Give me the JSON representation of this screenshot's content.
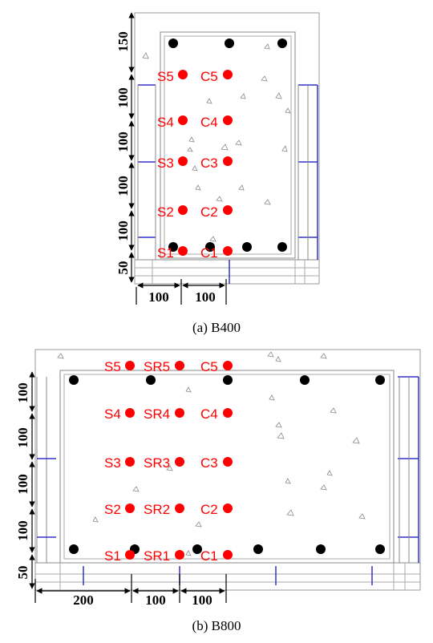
{
  "colors": {
    "sensor": "#ff0000",
    "rebar": "#000000",
    "frame": "#3333cc",
    "concrete_outline": "#808080"
  },
  "panels": [
    {
      "id": "B400",
      "caption": "(a) B400",
      "sensor_rows": [
        [
          "S5",
          "C5"
        ],
        [
          "S4",
          "C4"
        ],
        [
          "S3",
          "C3"
        ],
        [
          "S2",
          "C2"
        ],
        [
          "S1",
          "C1"
        ]
      ],
      "vertical_dims": [
        "150",
        "100",
        "100",
        "100",
        "100",
        "50"
      ],
      "horizontal_dims": [
        "100",
        "100"
      ]
    },
    {
      "id": "B800",
      "caption": "(b) B800",
      "sensor_rows": [
        [
          "S5",
          "SR5",
          "C5"
        ],
        [
          "S4",
          "SR4",
          "C4"
        ],
        [
          "S3",
          "SR3",
          "C3"
        ],
        [
          "S2",
          "SR2",
          "C2"
        ],
        [
          "S1",
          "SR1",
          "C1"
        ]
      ],
      "vertical_dims": [
        "100",
        "100",
        "100",
        "100",
        "50"
      ],
      "horizontal_dims": [
        "200",
        "100",
        "100"
      ]
    }
  ]
}
